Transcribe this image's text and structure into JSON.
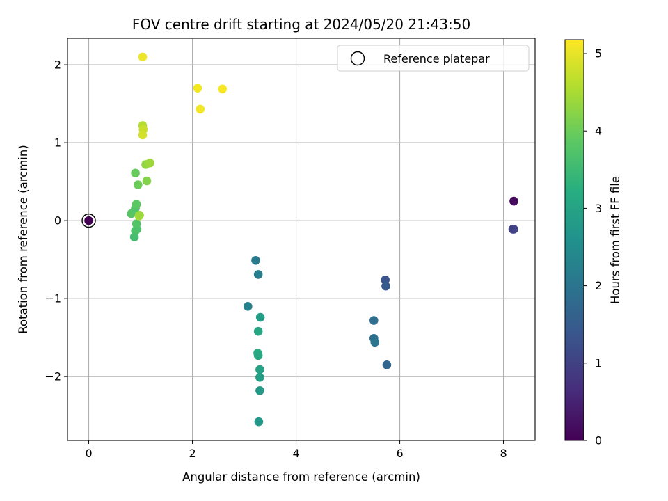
{
  "chart_data": {
    "type": "scatter",
    "title": "FOV centre drift starting at 2024/05/20 21:43:50",
    "xlabel": "Angular distance from reference (arcmin)",
    "ylabel": "Rotation from reference (arcmin)",
    "xlim": [
      -0.41,
      8.61
    ],
    "ylim": [
      -2.82,
      2.34
    ],
    "xticks": [
      0,
      2,
      4,
      6,
      8
    ],
    "xtick_labels": [
      "0",
      "2",
      "4",
      "6",
      "8"
    ],
    "yticks": [
      -2,
      -1,
      0,
      1,
      2
    ],
    "ytick_labels": [
      "−2",
      "−1",
      "0",
      "1",
      "2"
    ],
    "grid": true,
    "legend": {
      "position": "top-right",
      "entries": [
        "Reference platepar"
      ]
    },
    "reference_point": {
      "label": "Reference platepar",
      "x": 0,
      "y": 0
    },
    "colorbar": {
      "label": "Hours from first FF file",
      "colormap": "viridis",
      "range": [
        0,
        5.18
      ],
      "ticks": [
        0,
        1,
        2,
        3,
        4,
        5
      ],
      "tick_labels": [
        "0",
        "1",
        "2",
        "3",
        "4",
        "5"
      ]
    },
    "points": [
      {
        "x": 0.0,
        "y": 0.0,
        "h": 0.0
      },
      {
        "x": 8.2,
        "y": 0.25,
        "h": 0.15
      },
      {
        "x": 8.18,
        "y": -0.11,
        "h": 0.9
      },
      {
        "x": 8.2,
        "y": -0.11,
        "h": 1.0
      },
      {
        "x": 5.75,
        "y": -1.85,
        "h": 1.7
      },
      {
        "x": 5.72,
        "y": -0.76,
        "h": 1.35
      },
      {
        "x": 5.73,
        "y": -0.84,
        "h": 1.45
      },
      {
        "x": 5.5,
        "y": -1.28,
        "h": 1.85
      },
      {
        "x": 5.5,
        "y": -1.51,
        "h": 1.9
      },
      {
        "x": 5.52,
        "y": -1.56,
        "h": 2.0
      },
      {
        "x": 3.22,
        "y": -0.51,
        "h": 2.1
      },
      {
        "x": 3.27,
        "y": -0.69,
        "h": 2.2
      },
      {
        "x": 3.07,
        "y": -1.1,
        "h": 2.25
      },
      {
        "x": 3.31,
        "y": -1.24,
        "h": 2.85
      },
      {
        "x": 3.27,
        "y": -1.42,
        "h": 3.05
      },
      {
        "x": 3.26,
        "y": -1.7,
        "h": 3.2
      },
      {
        "x": 3.27,
        "y": -1.73,
        "h": 3.1
      },
      {
        "x": 3.3,
        "y": -1.91,
        "h": 2.95
      },
      {
        "x": 3.3,
        "y": -2.01,
        "h": 2.9
      },
      {
        "x": 3.3,
        "y": -2.18,
        "h": 2.8
      },
      {
        "x": 3.28,
        "y": -2.58,
        "h": 2.75
      },
      {
        "x": 0.88,
        "y": -0.21,
        "h": 3.6
      },
      {
        "x": 0.9,
        "y": -0.13,
        "h": 3.65
      },
      {
        "x": 0.93,
        "y": -0.11,
        "h": 3.7
      },
      {
        "x": 0.92,
        "y": -0.04,
        "h": 3.75
      },
      {
        "x": 0.82,
        "y": 0.09,
        "h": 3.8
      },
      {
        "x": 0.9,
        "y": 0.16,
        "h": 3.75
      },
      {
        "x": 0.92,
        "y": 0.21,
        "h": 3.85
      },
      {
        "x": 0.97,
        "y": 0.06,
        "h": 4.5
      },
      {
        "x": 0.98,
        "y": 0.07,
        "h": 4.4
      },
      {
        "x": 0.95,
        "y": 0.46,
        "h": 4.0
      },
      {
        "x": 0.9,
        "y": 0.61,
        "h": 3.95
      },
      {
        "x": 1.12,
        "y": 0.51,
        "h": 4.2
      },
      {
        "x": 1.1,
        "y": 0.72,
        "h": 4.3
      },
      {
        "x": 1.18,
        "y": 0.74,
        "h": 4.4
      },
      {
        "x": 1.04,
        "y": 1.22,
        "h": 4.6
      },
      {
        "x": 1.05,
        "y": 1.17,
        "h": 4.75
      },
      {
        "x": 1.04,
        "y": 1.1,
        "h": 4.85
      },
      {
        "x": 1.04,
        "y": 2.1,
        "h": 5.05
      },
      {
        "x": 2.1,
        "y": 1.7,
        "h": 5.1
      },
      {
        "x": 2.15,
        "y": 1.43,
        "h": 5.1
      },
      {
        "x": 2.58,
        "y": 1.69,
        "h": 5.12
      }
    ]
  }
}
